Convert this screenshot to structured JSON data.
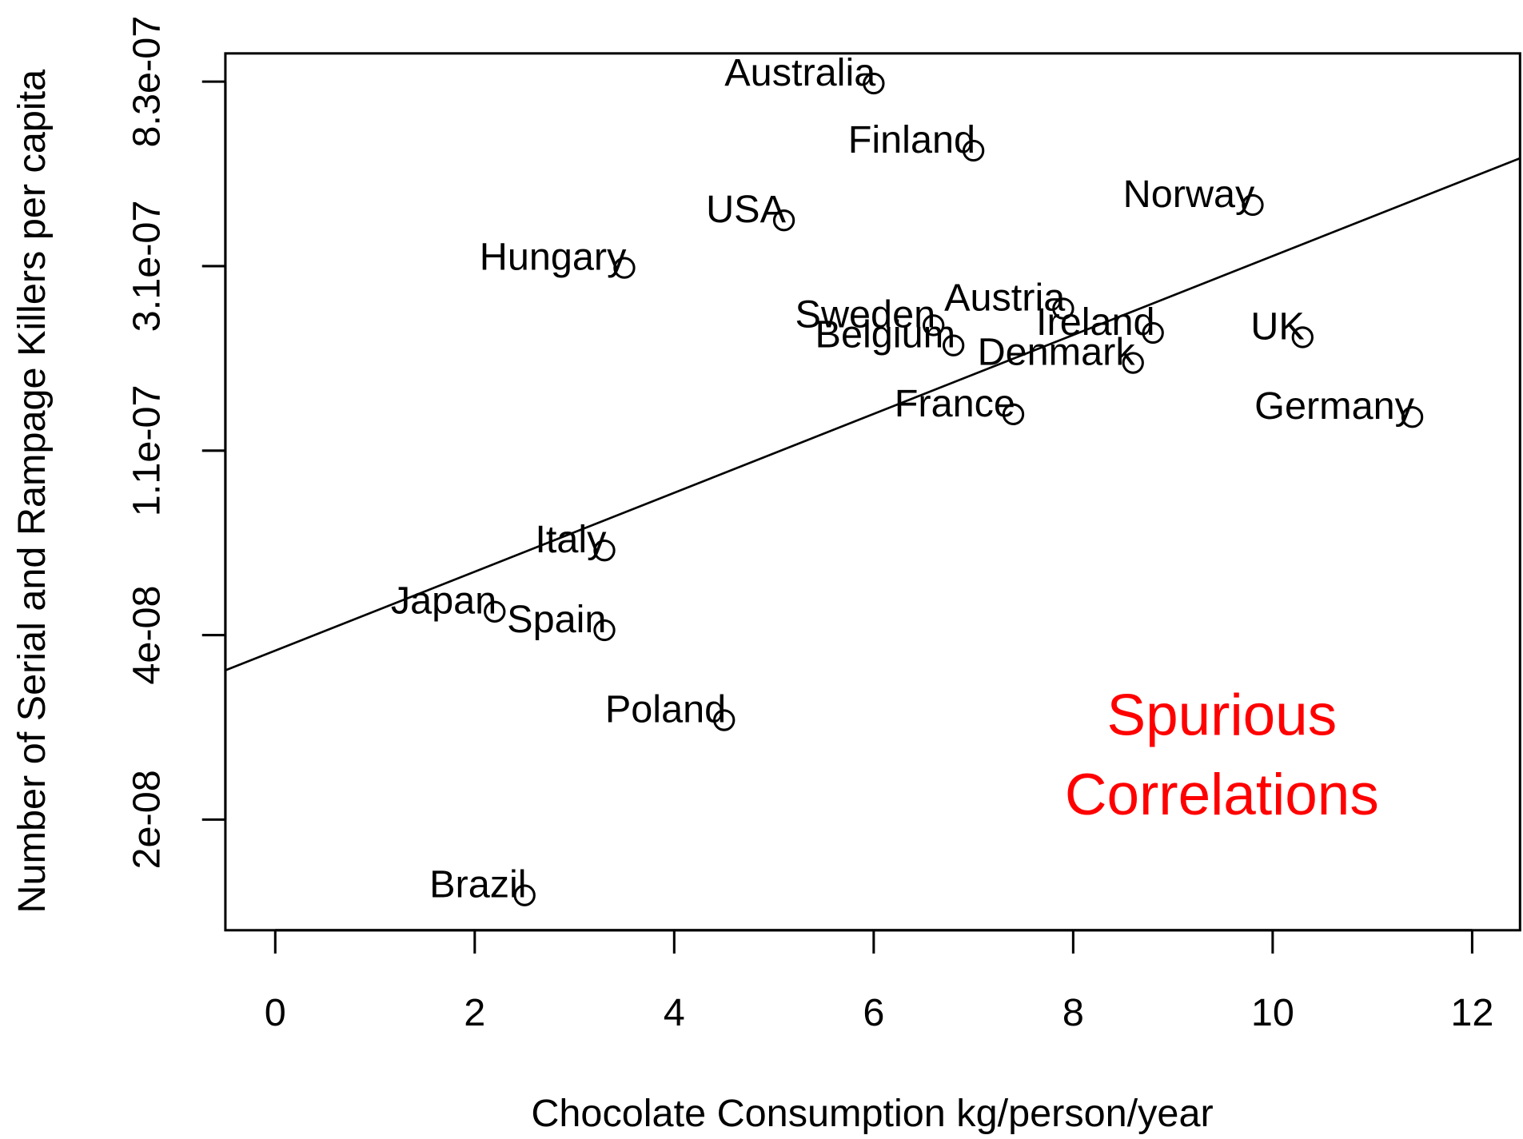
{
  "chart_data": {
    "type": "scatter",
    "xlabel": "Chocolate Consumption kg/person/year",
    "ylabel": "Number of Serial and Rampage Killers per capita",
    "labels": [
      "Australia",
      "Finland",
      "USA",
      "Norway",
      "Hungary",
      "Austria",
      "Sweden",
      "Ireland",
      "UK",
      "Belgium",
      "Denmark",
      "France",
      "Germany",
      "Italy",
      "Japan",
      "Spain",
      "Poland",
      "Brazil"
    ],
    "x": [
      6.0,
      7.0,
      5.1,
      9.8,
      3.5,
      7.9,
      6.6,
      8.8,
      10.3,
      6.8,
      8.6,
      7.4,
      11.4,
      3.3,
      2.2,
      3.3,
      4.5,
      2.5
    ],
    "values": [
      8.23e-07,
      5.72e-07,
      3.92e-07,
      4.26e-07,
      3.03e-07,
      2.43e-07,
      2.22e-07,
      2.13e-07,
      2.08e-07,
      1.99e-07,
      1.81e-07,
      1.37e-07,
      1.35e-07,
      6.55e-08,
      4.7e-08,
      4.25e-08,
      2.61e-08,
      1.01e-08
    ],
    "color": "#000000",
    "trendline": {
      "x": [
        -0.5,
        12.48
      ],
      "values": [
        3.42e-08,
        5.49e-07
      ]
    },
    "xlim": [
      -0.5,
      12.48
    ],
    "xticks": [
      0,
      2,
      4,
      6,
      8,
      10,
      12
    ],
    "ylim": [
      8.36e-09,
      9.69e-07
    ],
    "ylog": true,
    "yticks": [
      {
        "value": 1.523e-08,
        "label": "2e-08"
      },
      {
        "value": 4.14e-08,
        "label": "4e-08"
      },
      {
        "value": 1.125e-07,
        "label": "1.1e-07"
      },
      {
        "value": 3.059e-07,
        "label": "3.1e-07"
      },
      {
        "value": 8.315e-07,
        "label": "8.3e-07"
      }
    ],
    "annotation": {
      "lines": [
        "Spurious",
        "Correlations"
      ],
      "color": "#ff0000"
    }
  }
}
